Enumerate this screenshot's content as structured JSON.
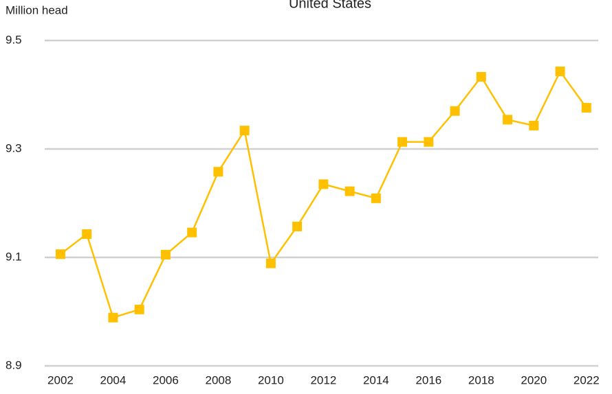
{
  "chart_data": {
    "type": "line",
    "title": "United States",
    "y_label": "Million head",
    "x": [
      2002,
      2003,
      2004,
      2005,
      2006,
      2007,
      2008,
      2009,
      2010,
      2011,
      2012,
      2013,
      2014,
      2015,
      2016,
      2017,
      2018,
      2019,
      2020,
      2021,
      2022
    ],
    "series": [
      {
        "name": "United States",
        "color": "#FFC000",
        "values": [
          9.106,
          9.143,
          8.989,
          9.004,
          9.105,
          9.146,
          9.258,
          9.334,
          9.089,
          9.157,
          9.235,
          9.222,
          9.209,
          9.313,
          9.313,
          9.37,
          9.433,
          9.354,
          9.343,
          9.443,
          9.376
        ]
      }
    ],
    "xlim": [
      2001.4,
      2022.45
    ],
    "xticks": [
      2002,
      2004,
      2006,
      2008,
      2010,
      2012,
      2014,
      2016,
      2018,
      2020,
      2022
    ],
    "ylim": [
      8.9,
      9.5
    ],
    "yticks": [
      8.9,
      9.1,
      9.3,
      9.5
    ],
    "grid": true
  }
}
